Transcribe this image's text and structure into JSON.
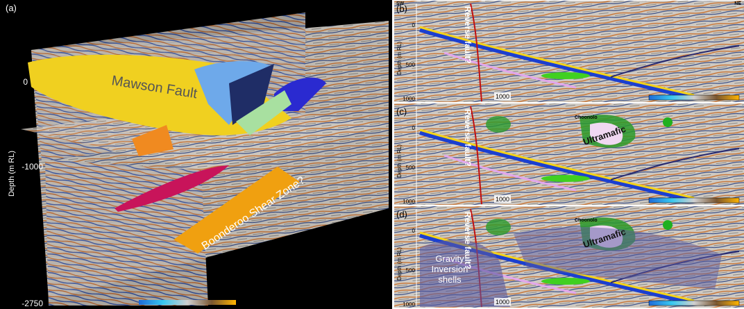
{
  "panel_a": {
    "label": "(a)",
    "y_axis_title": "Depth (m RL)",
    "depth_labels": [
      "0",
      "-1000",
      "-2750"
    ],
    "annotations": [
      "Mawson Fault",
      "Boonderoo Shear Zone?"
    ]
  },
  "panel_b": {
    "label": "(b)",
    "left_end": "SW",
    "right_end": "NE",
    "y_axis_title": "Depth (m RL)",
    "depth_labels": [
      "0",
      "500",
      "1000"
    ],
    "scale_label": "1000",
    "annotations": [
      "Reverse fault?"
    ]
  },
  "panel_c": {
    "label": "(c)",
    "y_axis_title": "Depth (m RL)",
    "depth_labels": [
      "0",
      "500",
      "1000"
    ],
    "scale_label": "1000",
    "annotations": [
      "Reverse fault?",
      "Choonolo",
      "Ultramafic"
    ]
  },
  "panel_d": {
    "label": "(d)",
    "y_axis_title": "Depth (m RL)",
    "depth_labels": [
      "0",
      "500",
      "1000"
    ],
    "scale_label": "1000",
    "annotations": [
      "Reverse fault?",
      "Choonolo",
      "Ultramafic",
      "Gravity Inversion shells"
    ]
  }
}
